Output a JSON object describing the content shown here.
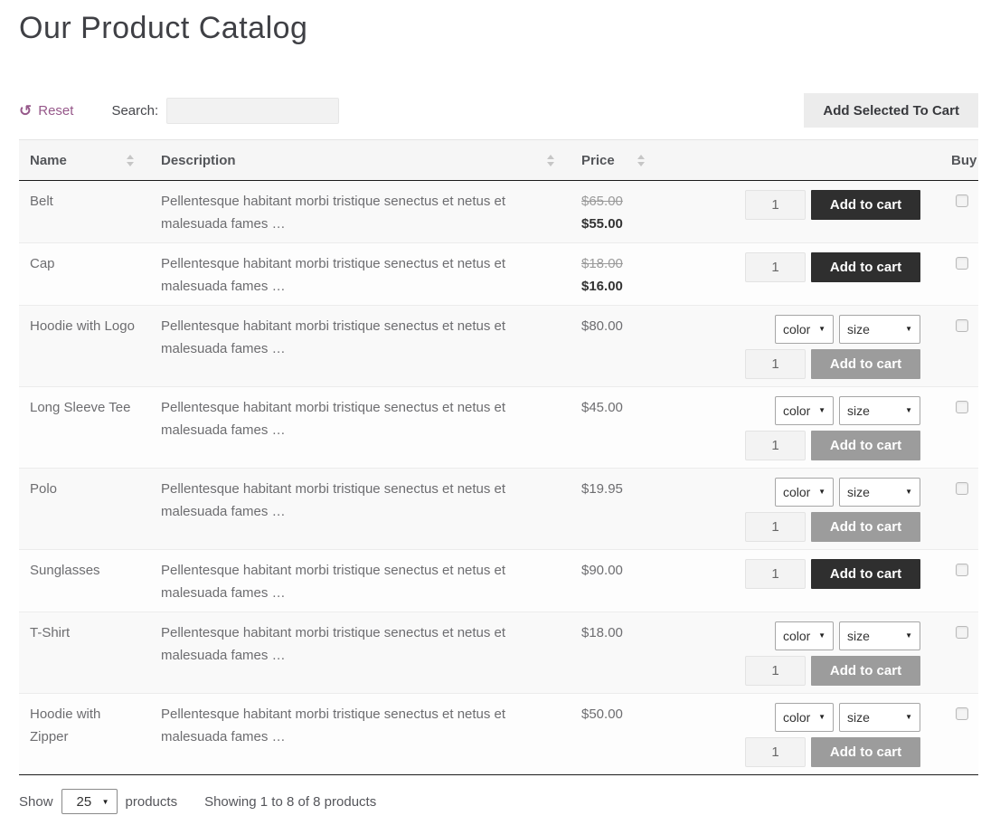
{
  "page": {
    "title": "Our Product Catalog"
  },
  "toolbar": {
    "reset_label": "Reset",
    "reset_icon": "↺",
    "search_label": "Search:",
    "search_value": "",
    "add_selected_label": "Add Selected To Cart"
  },
  "table": {
    "headers": {
      "name": "Name",
      "description": "Description",
      "price": "Price",
      "buy": "Buy"
    },
    "add_to_cart_label": "Add to cart",
    "rows": [
      {
        "name": "Belt",
        "description": "Pellentesque habitant morbi tristique senectus et netus et malesuada fames …",
        "price_regular": "$65.00",
        "price_sale": "$55.00",
        "price": "",
        "qty": "1",
        "variations": [],
        "button_style": "dark",
        "checked": false
      },
      {
        "name": "Cap",
        "description": "Pellentesque habitant morbi tristique senectus et netus et malesuada fames …",
        "price_regular": "$18.00",
        "price_sale": "$16.00",
        "price": "",
        "qty": "1",
        "variations": [],
        "button_style": "dark",
        "checked": false
      },
      {
        "name": "Hoodie with Logo",
        "description": "Pellentesque habitant morbi tristique senectus et netus et malesuada fames …",
        "price": "$80.00",
        "qty": "1",
        "variations": [
          "color",
          "size"
        ],
        "button_style": "gray",
        "checked": false
      },
      {
        "name": "Long Sleeve Tee",
        "description": "Pellentesque habitant morbi tristique senectus et netus et malesuada fames …",
        "price": "$45.00",
        "qty": "1",
        "variations": [
          "color",
          "size"
        ],
        "button_style": "gray",
        "checked": false
      },
      {
        "name": "Polo",
        "description": "Pellentesque habitant morbi tristique senectus et netus et malesuada fames …",
        "price": "$19.95",
        "qty": "1",
        "variations": [
          "color",
          "size"
        ],
        "button_style": "gray",
        "checked": false
      },
      {
        "name": "Sunglasses",
        "description": "Pellentesque habitant morbi tristique senectus et netus et malesuada fames …",
        "price": "$90.00",
        "qty": "1",
        "variations": [],
        "button_style": "dark",
        "checked": false
      },
      {
        "name": "T-Shirt",
        "description": "Pellentesque habitant morbi tristique senectus et netus et malesuada fames …",
        "price": "$18.00",
        "qty": "1",
        "variations": [
          "color",
          "size"
        ],
        "button_style": "gray",
        "checked": false
      },
      {
        "name": "Hoodie with Zipper",
        "description": "Pellentesque habitant morbi tristique senectus et netus et malesuada fames …",
        "price": "$50.00",
        "qty": "1",
        "variations": [
          "color",
          "size"
        ],
        "button_style": "gray",
        "checked": false
      }
    ]
  },
  "footer": {
    "show_label": "Show",
    "page_size": "25",
    "products_label": "products",
    "showing_text": "Showing 1 to 8 of 8 products"
  },
  "colors": {
    "accent": "#96588a",
    "button_dark": "#2f2f2f",
    "button_disabled": "#9c9c9c",
    "sale_price": "#333333",
    "stripe_odd": "#f9f9f9",
    "stripe_even": "#fdfdfd",
    "header_bg": "#f6f6f6"
  }
}
